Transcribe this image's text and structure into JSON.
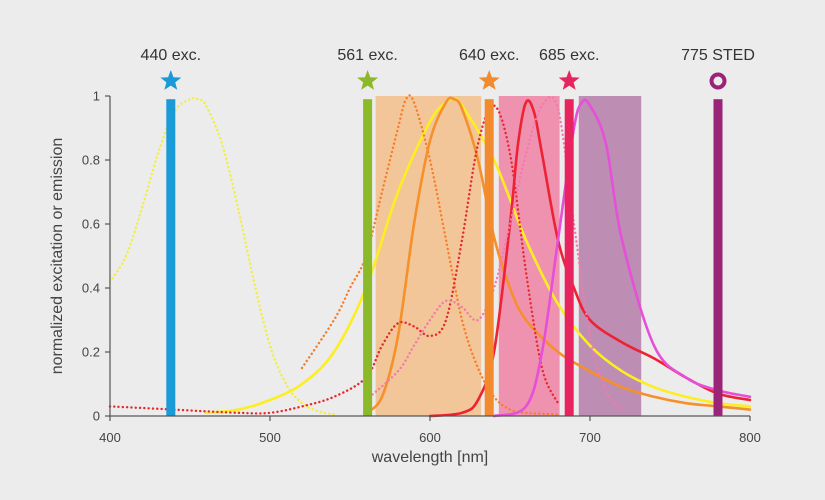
{
  "chart_data": {
    "type": "line",
    "title": "",
    "xlabel": "wavelength [nm]",
    "ylabel": "normalized excitation or emission",
    "xlim": [
      400,
      800
    ],
    "ylim": [
      0,
      1
    ],
    "xticks": [
      400,
      500,
      600,
      700,
      800
    ],
    "yticks": [
      0,
      0.2,
      0.4,
      0.6,
      0.8,
      1
    ],
    "ytick_labels": [
      "0",
      "0.2",
      "0.4",
      "0.6",
      "0.8",
      "1"
    ],
    "grid": false,
    "detection_bands": [
      {
        "x": [
          566,
          632
        ],
        "color": "#f4c08a",
        "opacity": 0.85
      },
      {
        "x": [
          643,
          681
        ],
        "color": "#ef88a8",
        "opacity": 0.9
      },
      {
        "x": [
          693,
          732
        ],
        "color": "#bb88b0",
        "opacity": 0.95
      }
    ],
    "lasers": [
      {
        "label": "440 exc.",
        "x": 438,
        "color": "#1a9ad6",
        "marker": "star"
      },
      {
        "label": "561 exc.",
        "x": 561,
        "color": "#8cb92a",
        "marker": "star"
      },
      {
        "label": "640 exc.",
        "x": 637,
        "color": "#f28a2e",
        "marker": "star"
      },
      {
        "label": "685 exc.",
        "x": 687,
        "color": "#e8245e",
        "marker": "star"
      },
      {
        "label": "775 STED",
        "x": 780,
        "color": "#9a2478",
        "marker": "ring"
      }
    ],
    "series": [
      {
        "style": "dotted",
        "color": "#f2ee3c",
        "x": [
          400,
          410,
          420,
          430,
          440,
          450,
          455,
          460,
          470,
          480,
          490,
          500,
          510,
          520,
          530,
          540
        ],
        "y": [
          0.42,
          0.5,
          0.65,
          0.82,
          0.95,
          0.99,
          0.99,
          0.97,
          0.85,
          0.65,
          0.42,
          0.22,
          0.1,
          0.04,
          0.015,
          0.005
        ]
      },
      {
        "style": "solid",
        "color": "#fcee21",
        "x": [
          460,
          480,
          500,
          520,
          540,
          560,
          580,
          600,
          610,
          615,
          620,
          640,
          660,
          680,
          700,
          720,
          740,
          760,
          780,
          800
        ],
        "y": [
          0.01,
          0.02,
          0.05,
          0.1,
          0.2,
          0.4,
          0.7,
          0.92,
          0.98,
          0.99,
          0.97,
          0.8,
          0.55,
          0.35,
          0.22,
          0.14,
          0.09,
          0.06,
          0.04,
          0.03
        ]
      },
      {
        "style": "dotted",
        "color": "#f57e2a",
        "x": [
          520,
          540,
          550,
          560,
          570,
          580,
          585,
          590,
          600,
          610,
          620,
          630,
          640,
          650,
          660,
          680
        ],
        "y": [
          0.15,
          0.3,
          0.4,
          0.5,
          0.7,
          0.9,
          0.99,
          0.98,
          0.8,
          0.55,
          0.3,
          0.15,
          0.06,
          0.02,
          0.01,
          0.005
        ]
      },
      {
        "style": "solid",
        "color": "#f5902a",
        "x": [
          560,
          570,
          580,
          590,
          600,
          610,
          615,
          620,
          630,
          640,
          650,
          660,
          680,
          700,
          720,
          740,
          760,
          780,
          800
        ],
        "y": [
          0.01,
          0.06,
          0.25,
          0.6,
          0.86,
          0.98,
          0.99,
          0.96,
          0.8,
          0.56,
          0.4,
          0.3,
          0.2,
          0.14,
          0.09,
          0.06,
          0.04,
          0.03,
          0.02
        ]
      },
      {
        "style": "dotted",
        "color": "#e52a2a",
        "x": [
          400,
          440,
          480,
          500,
          520,
          540,
          560,
          570,
          580,
          590,
          600,
          610,
          620,
          630,
          640,
          650,
          660,
          670,
          680
        ],
        "y": [
          0.03,
          0.02,
          0.01,
          0.01,
          0.03,
          0.06,
          0.12,
          0.22,
          0.29,
          0.28,
          0.25,
          0.3,
          0.55,
          0.85,
          0.97,
          0.82,
          0.45,
          0.15,
          0.04
        ]
      },
      {
        "style": "solid",
        "color": "#ee2233",
        "x": [
          600,
          620,
          630,
          640,
          650,
          655,
          660,
          665,
          670,
          680,
          690,
          700,
          720,
          740,
          760,
          780,
          800
        ],
        "y": [
          0.0,
          0.01,
          0.05,
          0.2,
          0.6,
          0.85,
          0.98,
          0.95,
          0.82,
          0.55,
          0.4,
          0.3,
          0.23,
          0.18,
          0.12,
          0.07,
          0.05
        ]
      },
      {
        "style": "dotted",
        "color": "#f27aae",
        "x": [
          560,
          580,
          590,
          600,
          610,
          620,
          630,
          640,
          650,
          660,
          670,
          680,
          690,
          700,
          710,
          720
        ],
        "y": [
          0.05,
          0.14,
          0.22,
          0.3,
          0.36,
          0.34,
          0.3,
          0.4,
          0.6,
          0.82,
          0.97,
          0.96,
          0.6,
          0.25,
          0.08,
          0.02
        ]
      },
      {
        "style": "solid",
        "color": "#e64fd8",
        "x": [
          640,
          660,
          670,
          680,
          690,
          695,
          700,
          710,
          720,
          740,
          760,
          780,
          800
        ],
        "y": [
          0.0,
          0.03,
          0.2,
          0.55,
          0.9,
          0.98,
          0.97,
          0.85,
          0.55,
          0.22,
          0.12,
          0.08,
          0.06
        ]
      }
    ]
  }
}
